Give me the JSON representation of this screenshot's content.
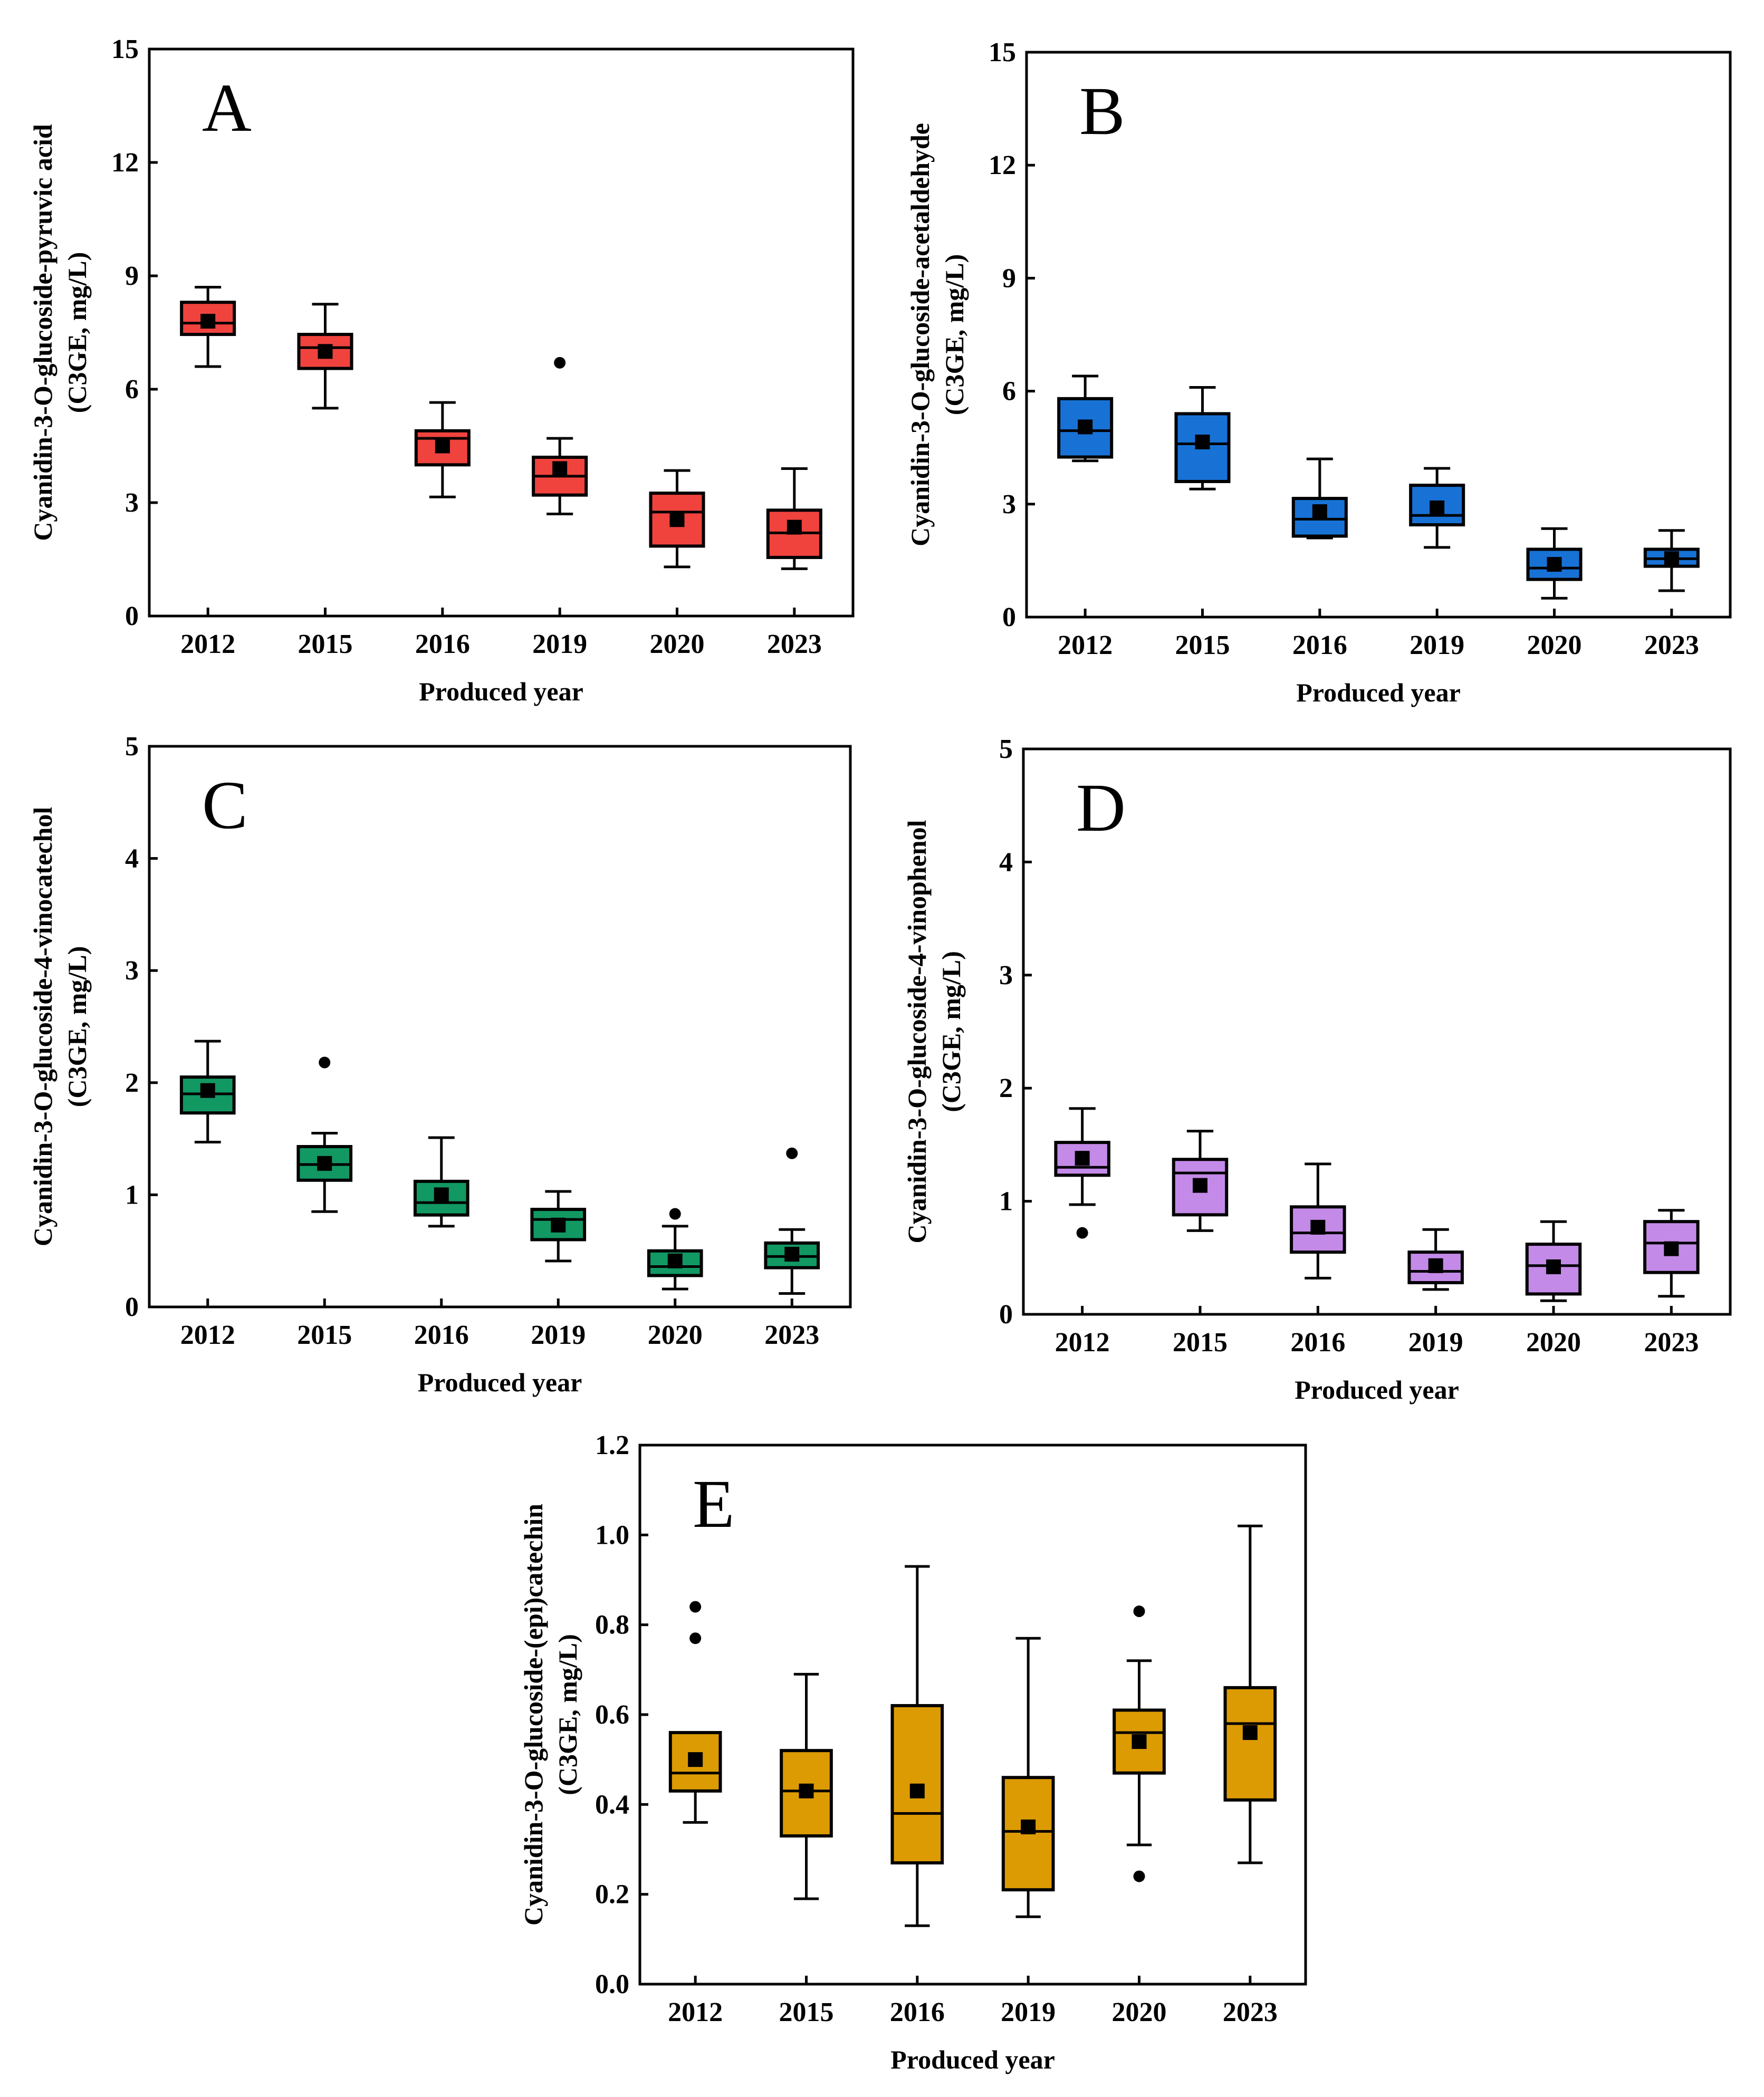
{
  "figure": {
    "colors": {
      "A": "#f0433e",
      "B": "#1872d6",
      "C": "#129863",
      "D": "#c48ae8",
      "E": "#dc9b03"
    }
  },
  "chart_data": [
    {
      "id": "A",
      "type": "box",
      "panel_label": "A",
      "categories": [
        "2012",
        "2015",
        "2016",
        "2019",
        "2020",
        "2023"
      ],
      "ylabel_line1": "Cyanidin-3-O-glucoside-pyruvic acid",
      "ylabel_line2": "(C3GE, mg/L)",
      "xlabel": "Produced year",
      "ylim": [
        0,
        15
      ],
      "yticks": [
        0,
        3,
        6,
        9,
        12,
        15
      ],
      "ytick_labels": [
        "0",
        "3",
        "6",
        "9",
        "12",
        "15"
      ],
      "color": "#f0433e",
      "boxes": [
        {
          "min": 6.6,
          "q1": 7.45,
          "median": 7.75,
          "q3": 8.3,
          "max": 8.7,
          "mean": 7.8,
          "outliers": []
        },
        {
          "min": 5.5,
          "q1": 6.55,
          "median": 7.1,
          "q3": 7.45,
          "max": 8.25,
          "mean": 7.0,
          "outliers": []
        },
        {
          "min": 3.15,
          "q1": 4.0,
          "median": 4.7,
          "q3": 4.9,
          "max": 5.65,
          "mean": 4.5,
          "outliers": []
        },
        {
          "min": 2.7,
          "q1": 3.2,
          "median": 3.7,
          "q3": 4.2,
          "max": 4.7,
          "mean": 3.9,
          "outliers": [
            6.7
          ]
        },
        {
          "min": 1.3,
          "q1": 1.85,
          "median": 2.75,
          "q3": 3.25,
          "max": 3.85,
          "mean": 2.55,
          "outliers": []
        },
        {
          "min": 1.25,
          "q1": 1.55,
          "median": 2.2,
          "q3": 2.8,
          "max": 3.9,
          "mean": 2.35,
          "outliers": []
        }
      ]
    },
    {
      "id": "B",
      "type": "box",
      "panel_label": "B",
      "categories": [
        "2012",
        "2015",
        "2016",
        "2019",
        "2020",
        "2023"
      ],
      "ylabel_line1": "Cyanidin-3-O-glucoside-acetaldehyde",
      "ylabel_line2": "(C3GE, mg/L)",
      "xlabel": "Produced year",
      "ylim": [
        0,
        15
      ],
      "yticks": [
        0,
        3,
        6,
        9,
        12,
        15
      ],
      "ytick_labels": [
        "0",
        "3",
        "6",
        "9",
        "12",
        "15"
      ],
      "color": "#1872d6",
      "boxes": [
        {
          "min": 4.15,
          "q1": 4.25,
          "median": 4.95,
          "q3": 5.8,
          "max": 6.4,
          "mean": 5.05,
          "outliers": []
        },
        {
          "min": 3.4,
          "q1": 3.6,
          "median": 4.6,
          "q3": 5.4,
          "max": 6.1,
          "mean": 4.65,
          "outliers": []
        },
        {
          "min": 2.1,
          "q1": 2.15,
          "median": 2.6,
          "q3": 3.15,
          "max": 4.2,
          "mean": 2.8,
          "outliers": []
        },
        {
          "min": 1.85,
          "q1": 2.45,
          "median": 2.7,
          "q3": 3.5,
          "max": 3.95,
          "mean": 2.9,
          "outliers": []
        },
        {
          "min": 0.5,
          "q1": 1.0,
          "median": 1.3,
          "q3": 1.8,
          "max": 2.35,
          "mean": 1.4,
          "outliers": []
        },
        {
          "min": 0.7,
          "q1": 1.35,
          "median": 1.55,
          "q3": 1.8,
          "max": 2.3,
          "mean": 1.55,
          "outliers": []
        }
      ]
    },
    {
      "id": "C",
      "type": "box",
      "panel_label": "C",
      "categories": [
        "2012",
        "2015",
        "2016",
        "2019",
        "2020",
        "2023"
      ],
      "ylabel_line1": "Cyanidin-3-O-glucoside-4-vinocatechol",
      "ylabel_line2": "(C3GE, mg/L)",
      "xlabel": "Produced year",
      "ylim": [
        0,
        5
      ],
      "yticks": [
        0,
        1,
        2,
        3,
        4,
        5
      ],
      "ytick_labels": [
        "0",
        "1",
        "2",
        "3",
        "4",
        "5"
      ],
      "color": "#129863",
      "boxes": [
        {
          "min": 1.47,
          "q1": 1.73,
          "median": 1.9,
          "q3": 2.05,
          "max": 2.37,
          "mean": 1.93,
          "outliers": []
        },
        {
          "min": 0.85,
          "q1": 1.13,
          "median": 1.27,
          "q3": 1.43,
          "max": 1.55,
          "mean": 1.28,
          "outliers": [
            2.18
          ]
        },
        {
          "min": 0.72,
          "q1": 0.82,
          "median": 0.93,
          "q3": 1.12,
          "max": 1.51,
          "mean": 1.0,
          "outliers": []
        },
        {
          "min": 0.41,
          "q1": 0.6,
          "median": 0.78,
          "q3": 0.87,
          "max": 1.03,
          "mean": 0.73,
          "outliers": []
        },
        {
          "min": 0.16,
          "q1": 0.28,
          "median": 0.36,
          "q3": 0.5,
          "max": 0.72,
          "mean": 0.41,
          "outliers": [
            0.83
          ]
        },
        {
          "min": 0.12,
          "q1": 0.35,
          "median": 0.45,
          "q3": 0.57,
          "max": 0.69,
          "mean": 0.47,
          "outliers": [
            1.37
          ]
        }
      ]
    },
    {
      "id": "D",
      "type": "box",
      "panel_label": "D",
      "categories": [
        "2012",
        "2015",
        "2016",
        "2019",
        "2020",
        "2023"
      ],
      "ylabel_line1": "Cyanidin-3-O-glucoside-4-vinophenol",
      "ylabel_line2": "(C3GE, mg/L)",
      "xlabel": "Produced year",
      "ylim": [
        0,
        5
      ],
      "yticks": [
        0,
        1,
        2,
        3,
        4,
        5
      ],
      "ytick_labels": [
        "0",
        "1",
        "2",
        "3",
        "4",
        "5"
      ],
      "color": "#c48ae8",
      "boxes": [
        {
          "min": 0.97,
          "q1": 1.23,
          "median": 1.3,
          "q3": 1.52,
          "max": 1.82,
          "mean": 1.38,
          "outliers": [
            0.72
          ]
        },
        {
          "min": 0.74,
          "q1": 0.88,
          "median": 1.25,
          "q3": 1.37,
          "max": 1.62,
          "mean": 1.14,
          "outliers": []
        },
        {
          "min": 0.32,
          "q1": 0.55,
          "median": 0.72,
          "q3": 0.95,
          "max": 1.33,
          "mean": 0.77,
          "outliers": []
        },
        {
          "min": 0.22,
          "q1": 0.28,
          "median": 0.38,
          "q3": 0.55,
          "max": 0.75,
          "mean": 0.43,
          "outliers": []
        },
        {
          "min": 0.12,
          "q1": 0.18,
          "median": 0.43,
          "q3": 0.62,
          "max": 0.82,
          "mean": 0.42,
          "outliers": []
        },
        {
          "min": 0.16,
          "q1": 0.37,
          "median": 0.63,
          "q3": 0.82,
          "max": 0.92,
          "mean": 0.58,
          "outliers": []
        }
      ]
    },
    {
      "id": "E",
      "type": "box",
      "panel_label": "E",
      "categories": [
        "2012",
        "2015",
        "2016",
        "2019",
        "2020",
        "2023"
      ],
      "ylabel_line1": "Cyanidin-3-O-glucoside-(epi)catechin",
      "ylabel_line2": "(C3GE, mg/L)",
      "xlabel": "Produced year",
      "ylim": [
        0,
        1.2
      ],
      "yticks": [
        0,
        0.2,
        0.4,
        0.6,
        0.8,
        1.0,
        1.2
      ],
      "ytick_labels": [
        "0.0",
        "0.2",
        "0.4",
        "0.6",
        "0.8",
        "1.0",
        "1.2"
      ],
      "color": "#dc9b03",
      "boxes": [
        {
          "min": 0.36,
          "q1": 0.43,
          "median": 0.47,
          "q3": 0.56,
          "max": 0.56,
          "mean": 0.5,
          "outliers": [
            0.77,
            0.84
          ]
        },
        {
          "min": 0.19,
          "q1": 0.33,
          "median": 0.43,
          "q3": 0.52,
          "max": 0.69,
          "mean": 0.43,
          "outliers": []
        },
        {
          "min": 0.13,
          "q1": 0.27,
          "median": 0.38,
          "q3": 0.62,
          "max": 0.93,
          "mean": 0.43,
          "outliers": []
        },
        {
          "min": 0.15,
          "q1": 0.21,
          "median": 0.34,
          "q3": 0.46,
          "max": 0.77,
          "mean": 0.35,
          "outliers": []
        },
        {
          "min": 0.31,
          "q1": 0.47,
          "median": 0.56,
          "q3": 0.61,
          "max": 0.72,
          "mean": 0.54,
          "outliers": [
            0.24,
            0.83
          ]
        },
        {
          "min": 0.27,
          "q1": 0.41,
          "median": 0.58,
          "q3": 0.66,
          "max": 1.02,
          "mean": 0.56,
          "outliers": []
        }
      ]
    }
  ]
}
